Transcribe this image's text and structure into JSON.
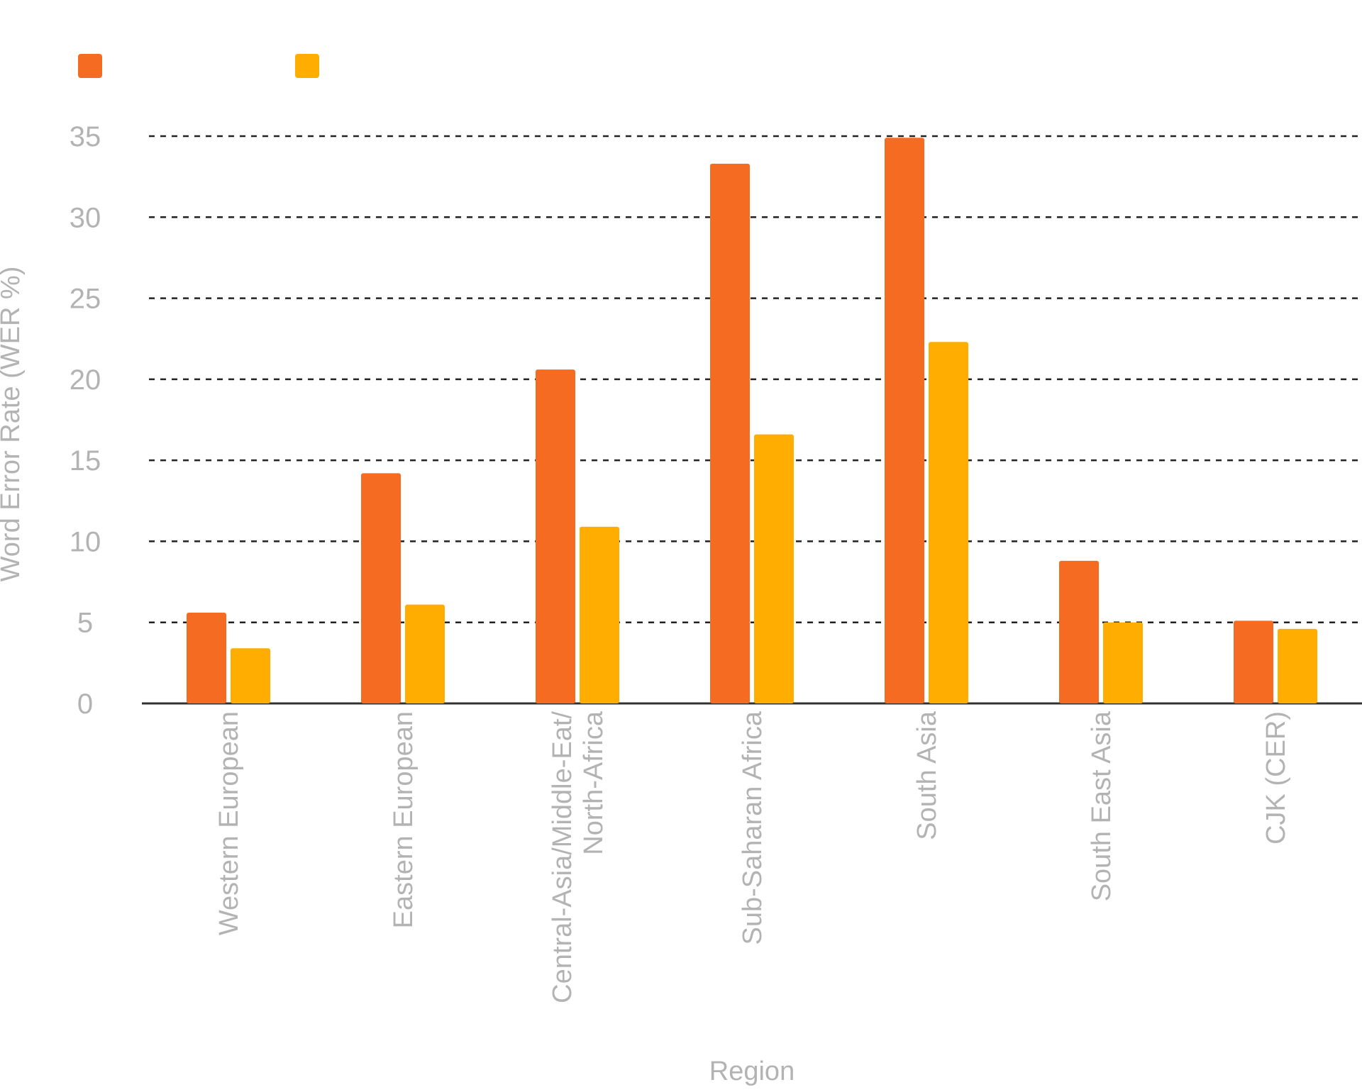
{
  "chart_data": {
    "type": "bar",
    "title": "",
    "xlabel": "Region",
    "ylabel": "Word Error Rate (WER %)",
    "ylim": [
      0,
      35
    ],
    "yticks": [
      0,
      5,
      10,
      15,
      20,
      25,
      30,
      35
    ],
    "grid": true,
    "legend_position": "top-left",
    "categories": [
      [
        "Western European"
      ],
      [
        "Eastern European"
      ],
      [
        "Central-Asia/Middle-Eat/",
        "North-Africa"
      ],
      [
        "Sub-Saharan Africa"
      ],
      [
        "South Asia"
      ],
      [
        "South East Asia"
      ],
      [
        "CJK (CER)"
      ]
    ],
    "series": [
      {
        "color": "#f56b22",
        "values": [
          5.6,
          14.2,
          20.6,
          33.3,
          34.9,
          8.8,
          5.1
        ]
      },
      {
        "color": "#ffad00",
        "values": [
          3.4,
          6.1,
          10.9,
          16.6,
          22.3,
          5.0,
          4.6
        ]
      }
    ]
  }
}
